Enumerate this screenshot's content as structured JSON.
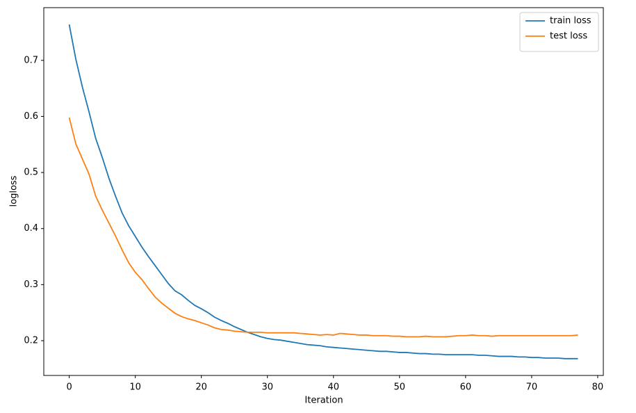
{
  "chart_data": {
    "type": "line",
    "x": [
      0,
      1,
      2,
      3,
      4,
      5,
      6,
      7,
      8,
      9,
      10,
      11,
      12,
      13,
      14,
      15,
      16,
      17,
      18,
      19,
      20,
      21,
      22,
      23,
      24,
      25,
      26,
      27,
      28,
      29,
      30,
      31,
      32,
      33,
      34,
      35,
      36,
      37,
      38,
      39,
      40,
      41,
      42,
      43,
      44,
      45,
      46,
      47,
      48,
      49,
      50,
      51,
      52,
      53,
      54,
      55,
      56,
      57,
      58,
      59,
      60,
      61,
      62,
      63,
      64,
      65,
      66,
      67,
      68,
      69,
      70,
      71,
      72,
      73,
      74,
      75,
      76,
      77
    ],
    "series": [
      {
        "name": "train loss",
        "color": "#1f77b4",
        "values": [
          0.764,
          0.702,
          0.652,
          0.608,
          0.561,
          0.527,
          0.49,
          0.458,
          0.428,
          0.405,
          0.386,
          0.367,
          0.35,
          0.334,
          0.318,
          0.302,
          0.289,
          0.282,
          0.272,
          0.263,
          0.257,
          0.25,
          0.242,
          0.236,
          0.231,
          0.225,
          0.22,
          0.215,
          0.211,
          0.207,
          0.204,
          0.202,
          0.201,
          0.199,
          0.197,
          0.195,
          0.193,
          0.192,
          0.191,
          0.189,
          0.188,
          0.187,
          0.186,
          0.185,
          0.184,
          0.183,
          0.182,
          0.181,
          0.181,
          0.18,
          0.179,
          0.179,
          0.178,
          0.177,
          0.177,
          0.176,
          0.176,
          0.175,
          0.175,
          0.175,
          0.175,
          0.175,
          0.174,
          0.174,
          0.173,
          0.172,
          0.172,
          0.172,
          0.171,
          0.171,
          0.17,
          0.17,
          0.169,
          0.169,
          0.169,
          0.168,
          0.168,
          0.168
        ]
      },
      {
        "name": "test loss",
        "color": "#ff7f0e",
        "values": [
          0.598,
          0.551,
          0.524,
          0.497,
          0.458,
          0.433,
          0.41,
          0.387,
          0.362,
          0.339,
          0.322,
          0.309,
          0.293,
          0.278,
          0.267,
          0.258,
          0.249,
          0.243,
          0.239,
          0.236,
          0.232,
          0.228,
          0.223,
          0.22,
          0.219,
          0.217,
          0.216,
          0.215,
          0.215,
          0.215,
          0.214,
          0.214,
          0.214,
          0.214,
          0.214,
          0.213,
          0.212,
          0.211,
          0.21,
          0.211,
          0.21,
          0.213,
          0.212,
          0.211,
          0.21,
          0.21,
          0.209,
          0.209,
          0.209,
          0.208,
          0.208,
          0.207,
          0.207,
          0.207,
          0.208,
          0.207,
          0.207,
          0.207,
          0.208,
          0.209,
          0.209,
          0.21,
          0.209,
          0.209,
          0.208,
          0.209,
          0.209,
          0.209,
          0.209,
          0.209,
          0.209,
          0.209,
          0.209,
          0.209,
          0.209,
          0.209,
          0.209,
          0.21
        ]
      }
    ],
    "xlabel": "Iteration",
    "ylabel": "logloss",
    "xlim": [
      -3.85,
      80.85
    ],
    "ylim": [
      0.138,
      0.794
    ],
    "xticks": [
      0,
      10,
      20,
      30,
      40,
      50,
      60,
      70,
      80
    ],
    "yticks": [
      0.2,
      0.3,
      0.4,
      0.5,
      0.6,
      0.7
    ],
    "grid": false,
    "legend": "upper-right"
  }
}
